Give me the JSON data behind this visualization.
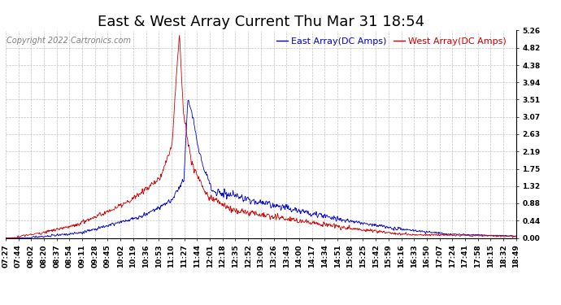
{
  "title": "East & West Array Current Thu Mar 31 18:54",
  "copyright": "Copyright 2022 Cartronics.com",
  "legend_east": "East Array(DC Amps)",
  "legend_west": "West Array(DC Amps)",
  "east_color": "#0000cc",
  "west_color": "#cc0000",
  "background_color": "#ffffff",
  "grid_color": "#aaaaaa",
  "yticks": [
    0.0,
    0.44,
    0.88,
    1.32,
    1.75,
    2.19,
    2.63,
    3.07,
    3.51,
    3.94,
    4.38,
    4.82,
    5.26
  ],
  "xtick_labels": [
    "07:27",
    "07:44",
    "08:02",
    "08:20",
    "08:37",
    "08:54",
    "09:11",
    "09:28",
    "09:45",
    "10:02",
    "10:19",
    "10:36",
    "10:53",
    "11:10",
    "11:27",
    "11:44",
    "12:01",
    "12:18",
    "12:35",
    "12:52",
    "13:09",
    "13:26",
    "13:43",
    "14:00",
    "14:17",
    "14:34",
    "14:51",
    "15:08",
    "15:25",
    "15:42",
    "15:59",
    "16:16",
    "16:33",
    "16:50",
    "17:07",
    "17:24",
    "17:41",
    "17:58",
    "18:15",
    "18:32",
    "18:49"
  ],
  "ylim": [
    0.0,
    5.26
  ],
  "title_fontsize": 13,
  "label_fontsize": 6.5,
  "copyright_fontsize": 7,
  "legend_fontsize": 8
}
